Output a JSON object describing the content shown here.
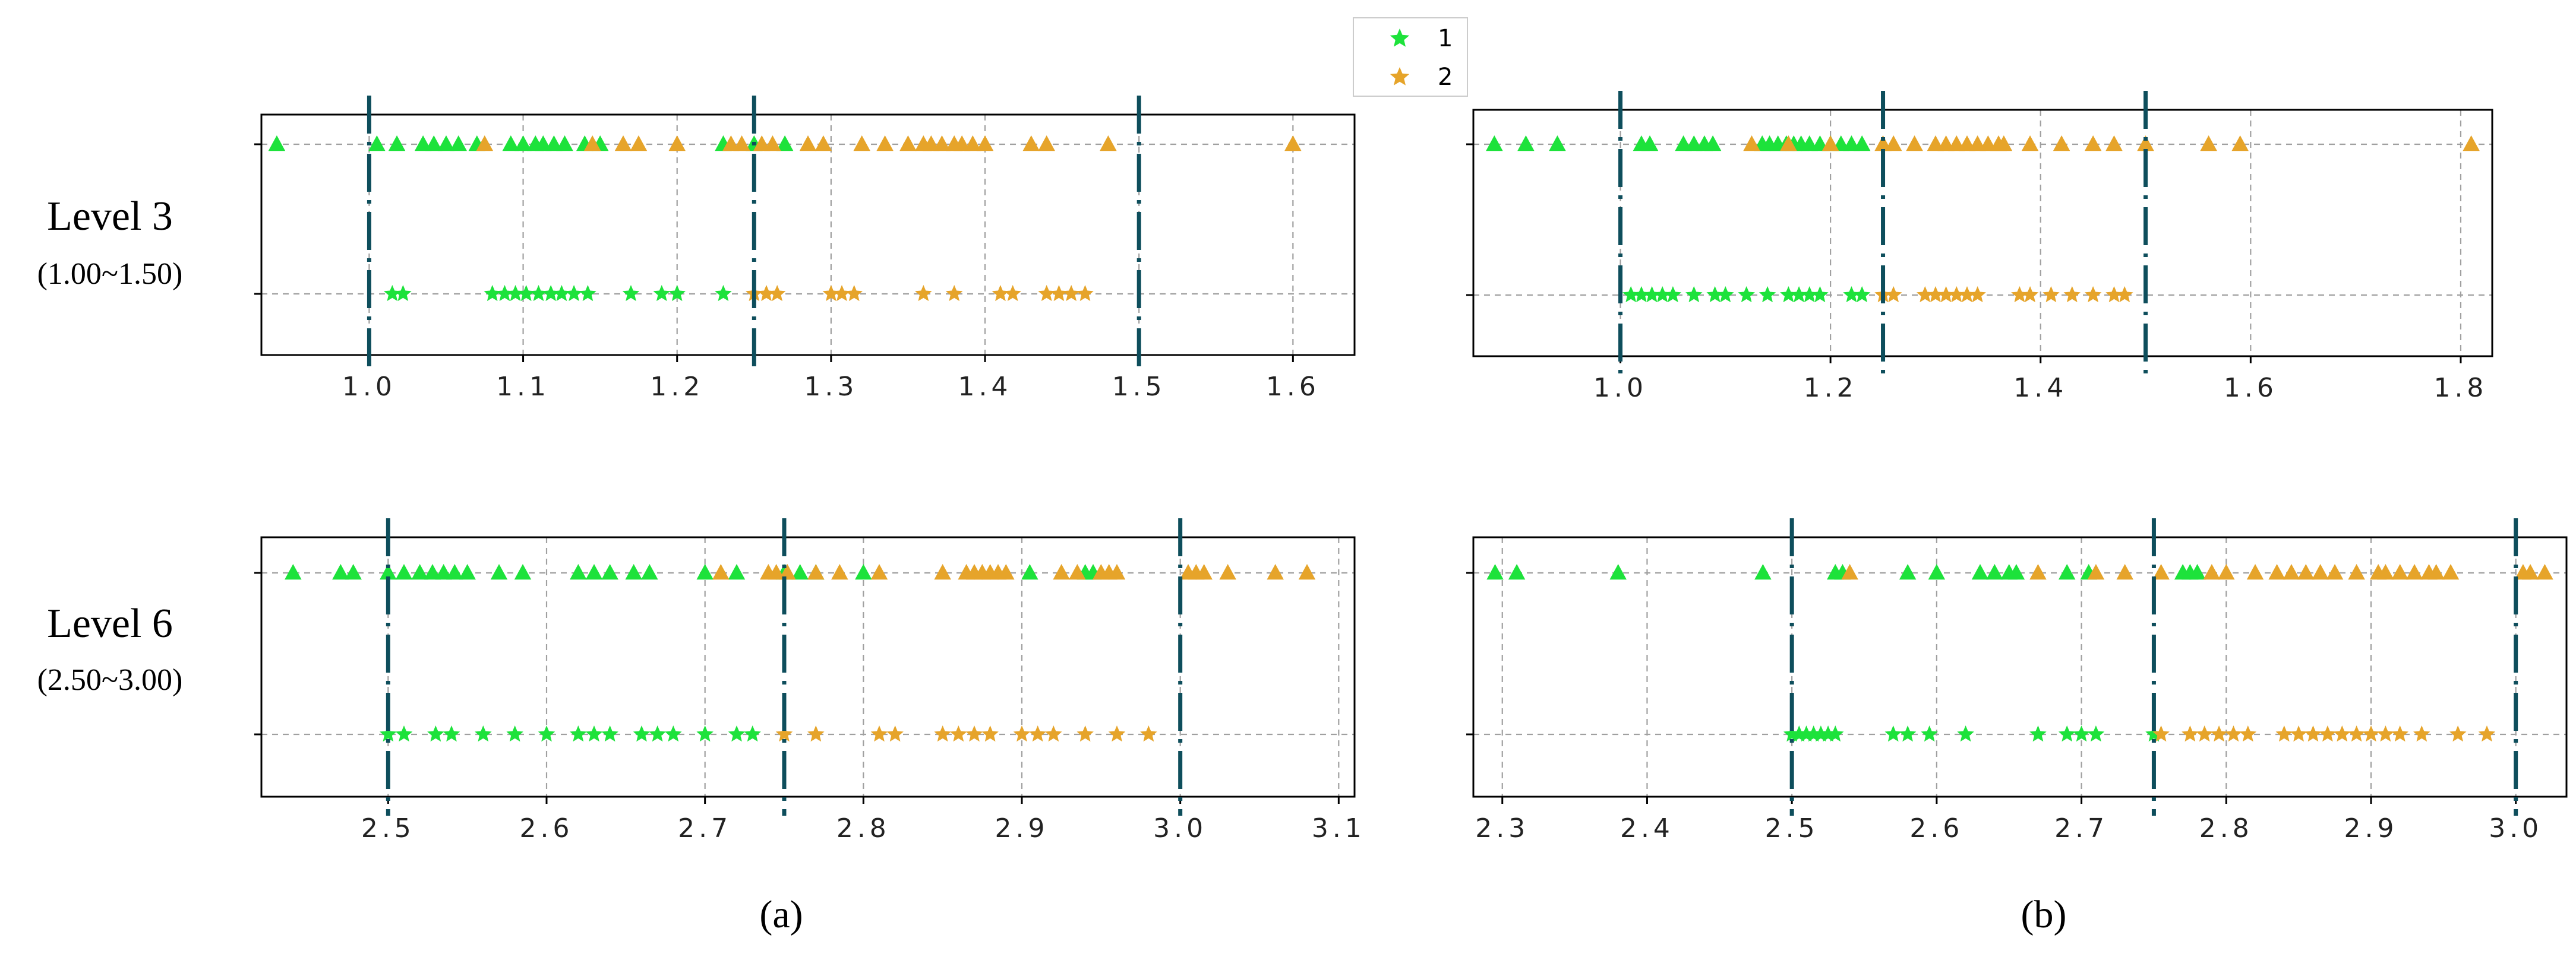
{
  "colors": {
    "class1": "#1de23b",
    "class2": "#e6a42a",
    "threshold": "#0e4e5c"
  },
  "legend": {
    "items": [
      {
        "label": "1",
        "color": "#1de23b",
        "marker": "star"
      },
      {
        "label": "2",
        "color": "#e6a42a",
        "marker": "star"
      }
    ]
  },
  "rows": [
    {
      "label": "Level 3",
      "range": "(1.00~1.50)"
    },
    {
      "label": "Level 6",
      "range": "(2.50~3.00)"
    }
  ],
  "captions": [
    "(a)",
    "(b)"
  ],
  "chart_data": [
    {
      "id": "a-level3",
      "type": "scatter",
      "xlim": [
        0.93,
        1.64
      ],
      "xticks": [
        1.0,
        1.1,
        1.2,
        1.3,
        1.4,
        1.5,
        1.6
      ],
      "xticklabels": [
        "1.0",
        "1.1",
        "1.2",
        "1.3",
        "1.4",
        "1.5",
        "1.6"
      ],
      "thresholds": [
        1.0,
        1.25,
        1.5
      ],
      "triangles": {
        "class1": [
          0.94,
          1.005,
          1.018,
          1.035,
          1.042,
          1.05,
          1.058,
          1.07,
          1.092,
          1.1,
          1.108,
          1.113,
          1.12,
          1.127,
          1.14,
          1.15,
          1.23,
          1.25,
          1.27
        ],
        "class2": [
          1.075,
          1.145,
          1.165,
          1.175,
          1.2,
          1.235,
          1.242,
          1.255,
          1.262,
          1.285,
          1.295,
          1.32,
          1.335,
          1.35,
          1.36,
          1.365,
          1.372,
          1.38,
          1.385,
          1.392,
          1.4,
          1.43,
          1.44,
          1.48,
          1.6
        ]
      },
      "stars": {
        "class1": [
          1.015,
          1.022,
          1.08,
          1.088,
          1.095,
          1.102,
          1.11,
          1.118,
          1.125,
          1.133,
          1.142,
          1.17,
          1.19,
          1.2,
          1.23
        ],
        "class2": [
          1.25,
          1.258,
          1.265,
          1.3,
          1.307,
          1.315,
          1.36,
          1.38,
          1.41,
          1.418,
          1.44,
          1.448,
          1.456,
          1.465
        ]
      }
    },
    {
      "id": "b-level3",
      "type": "scatter",
      "xlim": [
        0.86,
        1.83
      ],
      "xticks": [
        1.0,
        1.2,
        1.4,
        1.6,
        1.8
      ],
      "xticklabels": [
        "1.0",
        "1.2",
        "1.4",
        "1.6",
        "1.8"
      ],
      "thresholds": [
        1.0,
        1.25,
        1.5
      ],
      "triangles": {
        "class1": [
          0.88,
          0.91,
          0.94,
          1.02,
          1.028,
          1.06,
          1.07,
          1.08,
          1.088,
          1.135,
          1.142,
          1.15,
          1.158,
          1.165,
          1.172,
          1.18,
          1.19,
          1.2,
          1.21,
          1.22,
          1.23
        ],
        "class2": [
          1.125,
          1.16,
          1.2,
          1.25,
          1.26,
          1.28,
          1.3,
          1.31,
          1.32,
          1.33,
          1.34,
          1.35,
          1.36,
          1.365,
          1.39,
          1.42,
          1.45,
          1.47,
          1.5,
          1.56,
          1.59,
          1.81
        ]
      },
      "stars": {
        "class1": [
          1.01,
          1.02,
          1.03,
          1.04,
          1.05,
          1.07,
          1.09,
          1.1,
          1.12,
          1.14,
          1.16,
          1.17,
          1.18,
          1.19,
          1.22,
          1.23
        ],
        "class2": [
          1.25,
          1.26,
          1.29,
          1.3,
          1.31,
          1.32,
          1.33,
          1.34,
          1.38,
          1.39,
          1.41,
          1.43,
          1.45,
          1.47,
          1.48
        ]
      }
    },
    {
      "id": "a-level6",
      "type": "scatter",
      "xlim": [
        2.42,
        3.11
      ],
      "xticks": [
        2.5,
        2.6,
        2.7,
        2.8,
        2.9,
        3.0,
        3.1
      ],
      "xticklabels": [
        "2.5",
        "2.6",
        "2.7",
        "2.8",
        "2.9",
        "3.0",
        "3.1"
      ],
      "thresholds": [
        2.5,
        2.75,
        3.0
      ],
      "triangles": {
        "class1": [
          2.44,
          2.47,
          2.478,
          2.5,
          2.51,
          2.52,
          2.528,
          2.535,
          2.542,
          2.55,
          2.57,
          2.585,
          2.62,
          2.63,
          2.64,
          2.655,
          2.665,
          2.7,
          2.72,
          2.75,
          2.76,
          2.77,
          2.8,
          2.905,
          2.94,
          2.945
        ],
        "class2": [
          2.71,
          2.74,
          2.745,
          2.752,
          2.77,
          2.785,
          2.81,
          2.85,
          2.865,
          2.87,
          2.875,
          2.88,
          2.885,
          2.89,
          2.925,
          2.935,
          2.95,
          2.955,
          2.96,
          3.005,
          3.01,
          3.015,
          3.03,
          3.06,
          3.08
        ]
      },
      "stars": {
        "class1": [
          2.5,
          2.51,
          2.53,
          2.54,
          2.56,
          2.58,
          2.6,
          2.62,
          2.63,
          2.64,
          2.66,
          2.67,
          2.68,
          2.7,
          2.72,
          2.73
        ],
        "class2": [
          2.75,
          2.77,
          2.81,
          2.82,
          2.85,
          2.86,
          2.87,
          2.88,
          2.9,
          2.91,
          2.92,
          2.94,
          2.96,
          2.98
        ]
      }
    },
    {
      "id": "b-level6",
      "type": "scatter",
      "xlim": [
        2.28,
        3.035
      ],
      "xticks": [
        2.3,
        2.4,
        2.5,
        2.6,
        2.7,
        2.8,
        2.9,
        3.0
      ],
      "xticklabels": [
        "2.3",
        "2.4",
        "2.5",
        "2.6",
        "2.7",
        "2.8",
        "2.9",
        "3.0"
      ],
      "thresholds": [
        2.5,
        2.75,
        3.0
      ],
      "triangles": {
        "class1": [
          2.295,
          2.31,
          2.38,
          2.48,
          2.53,
          2.535,
          2.58,
          2.6,
          2.63,
          2.64,
          2.65,
          2.655,
          2.69,
          2.705,
          2.77,
          2.775,
          2.78
        ],
        "class2": [
          2.54,
          2.67,
          2.71,
          2.73,
          2.755,
          2.79,
          2.8,
          2.82,
          2.835,
          2.845,
          2.855,
          2.865,
          2.875,
          2.89,
          2.905,
          2.91,
          2.92,
          2.93,
          2.94,
          2.945,
          2.955,
          3.005,
          3.01,
          3.02
        ]
      },
      "stars": {
        "class1": [
          2.5,
          2.505,
          2.51,
          2.515,
          2.52,
          2.525,
          2.53,
          2.57,
          2.58,
          2.595,
          2.62,
          2.67,
          2.69,
          2.7,
          2.71,
          2.75
        ],
        "class2": [
          2.755,
          2.775,
          2.785,
          2.795,
          2.805,
          2.815,
          2.84,
          2.85,
          2.86,
          2.87,
          2.88,
          2.89,
          2.9,
          2.91,
          2.92,
          2.935,
          2.96,
          2.98
        ]
      }
    }
  ]
}
